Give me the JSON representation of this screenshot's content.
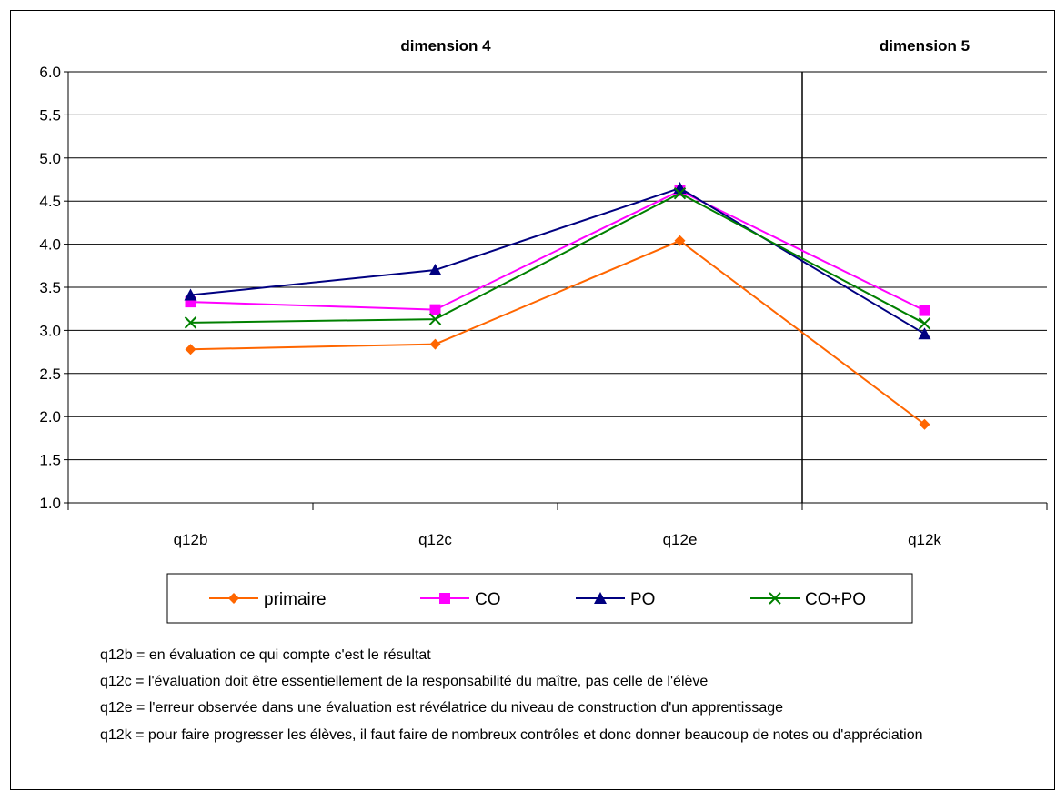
{
  "chart_data": {
    "type": "line",
    "categories": [
      "q12b",
      "q12c",
      "q12e",
      "q12k"
    ],
    "ylim": [
      1.0,
      6.0
    ],
    "ytick_step": 0.5,
    "ytick_labels": [
      "1.0",
      "1.5",
      "2.0",
      "2.5",
      "3.0",
      "3.5",
      "4.0",
      "4.5",
      "5.0",
      "5.5",
      "6.0"
    ],
    "grid": true,
    "sections": [
      {
        "label": "dimension 4",
        "categories": [
          "q12b",
          "q12c",
          "q12e"
        ]
      },
      {
        "label": "dimension 5",
        "categories": [
          "q12k"
        ]
      }
    ],
    "legend_position": "bottom",
    "series": [
      {
        "name": "primaire",
        "color": "#FF6600",
        "marker": "diamond",
        "values": [
          2.78,
          2.84,
          4.04,
          1.91
        ]
      },
      {
        "name": "CO",
        "color": "#FF00FF",
        "marker": "square",
        "values": [
          3.33,
          3.24,
          4.62,
          3.23
        ]
      },
      {
        "name": "PO",
        "color": "#000080",
        "marker": "triangle",
        "values": [
          3.41,
          3.7,
          4.65,
          2.96
        ]
      },
      {
        "name": "CO+PO",
        "color": "#008000",
        "marker": "x",
        "values": [
          3.09,
          3.13,
          4.59,
          3.08
        ]
      }
    ]
  },
  "definitions": [
    "q12b = en évaluation ce qui compte c'est le résultat",
    "q12c = l'évaluation doit être essentiellement de la responsabilité du maître, pas celle de l'élève",
    "q12e = l'erreur observée dans une évaluation est révélatrice du niveau de construction d'un apprentissage",
    "q12k = pour faire progresser les élèves, il faut faire de nombreux contrôles et donc donner beaucoup de notes ou d'appréciation"
  ]
}
